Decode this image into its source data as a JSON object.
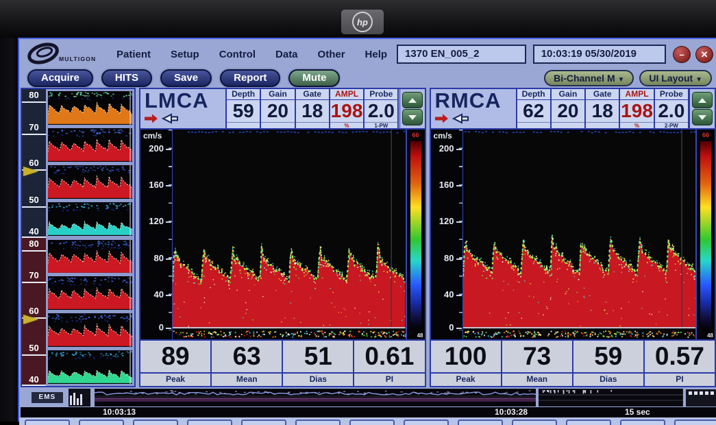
{
  "monitor": {
    "brand_logo": "hp"
  },
  "menu_bar": {
    "logo_text": "MULTIGON",
    "items": [
      "Patient",
      "Setup",
      "Control",
      "Data",
      "Other",
      "Help"
    ],
    "patient_id": "1370 EN_005_2",
    "datetime": "10:03:19 05/30/2019",
    "minimize_glyph": "–",
    "close_glyph": "✕"
  },
  "toolbar": {
    "buttons": [
      "Acquire",
      "HITS",
      "Save",
      "Report",
      "Mute"
    ],
    "mode_dropdown": "Bi-Channel M",
    "layout_dropdown": "UI Layout",
    "caret": "▼"
  },
  "sidebar": {
    "sections": [
      {
        "depth_labels": [
          "80",
          "70",
          "60",
          "50",
          "40"
        ],
        "arrow_depth": "60",
        "thumbs": [
          {
            "top_color": "#6fe0a8",
            "wave_color": "#e07818",
            "amp": "high"
          },
          {
            "top_color": "#3f6cf0",
            "wave_color": "#cc1822",
            "amp": "high"
          },
          {
            "top_color": "#3f6cf0",
            "wave_color": "#cc1822",
            "amp": "high"
          },
          {
            "top_color": "#38b8ee",
            "wave_color": "#28d0c8",
            "amp": "low"
          }
        ]
      },
      {
        "depth_labels": [
          "80",
          "70",
          "60",
          "50",
          "40"
        ],
        "arrow_depth": "60",
        "thumbs": [
          {
            "top_color": "#3f6cf0",
            "wave_color": "#cc1822",
            "amp": "high"
          },
          {
            "top_color": "#3f6cf0",
            "wave_color": "#cc1822",
            "amp": "high"
          },
          {
            "top_color": "#3f6cf0",
            "wave_color": "#cc1822",
            "amp": "high"
          },
          {
            "top_color": "#38b8ee",
            "wave_color": "#30d890",
            "amp": "low"
          }
        ]
      }
    ]
  },
  "panels": [
    {
      "title": "LMCA",
      "params": [
        {
          "header": "Depth",
          "value": "59",
          "sub": ""
        },
        {
          "header": "Gain",
          "value": "20",
          "sub": ""
        },
        {
          "header": "Gate",
          "value": "18",
          "sub": ""
        },
        {
          "header": "AMPL",
          "value": "198",
          "sub": "%"
        },
        {
          "header": "Probe",
          "value": "2.0",
          "sub": "1-PW"
        }
      ],
      "axis_unit": "cm/s",
      "axis_ticks": [
        "200",
        "160",
        "120",
        "80",
        "40",
        "0"
      ],
      "colorbar_max": "66",
      "strip_label": "48",
      "stats": [
        {
          "value": "89",
          "label": "Peak"
        },
        {
          "value": "63",
          "label": "Mean"
        },
        {
          "value": "51",
          "label": "Dias"
        },
        {
          "value": "0.61",
          "label": "PI"
        }
      ]
    },
    {
      "title": "RMCA",
      "params": [
        {
          "header": "Depth",
          "value": "62",
          "sub": ""
        },
        {
          "header": "Gain",
          "value": "20",
          "sub": ""
        },
        {
          "header": "Gate",
          "value": "18",
          "sub": ""
        },
        {
          "header": "AMPL",
          "value": "198",
          "sub": "%"
        },
        {
          "header": "Probe",
          "value": "2.0",
          "sub": "2-PW"
        }
      ],
      "axis_unit": "cm/s",
      "axis_ticks": [
        "200",
        "160",
        "120",
        "80",
        "40",
        "0"
      ],
      "colorbar_max": "66",
      "strip_label": "48",
      "stats": [
        {
          "value": "100",
          "label": "Peak"
        },
        {
          "value": "73",
          "label": "Mean"
        },
        {
          "value": "59",
          "label": "Dias"
        },
        {
          "value": "0.57",
          "label": "PI"
        }
      ]
    }
  ],
  "timeline": {
    "left_label": "EMS",
    "time_start": "10:03:13",
    "time_mid": "10:03:28",
    "duration_label": "15 sec"
  },
  "chart_data": [
    {
      "id": "lmca",
      "type": "area",
      "title": "LMCA Doppler velocity spectrum",
      "ylabel": "cm/s",
      "ylim": [
        0,
        220
      ],
      "yticks": [
        200,
        160,
        120,
        80,
        40,
        0
      ],
      "cycles": 8,
      "peak_cm_s": 89,
      "mean_cm_s": 63,
      "diastolic_cm_s": 51,
      "pi": 0.61,
      "fill_color": "#c81822",
      "intensity_scale_max": 66,
      "strip_value": 48
    },
    {
      "id": "rmca",
      "type": "area",
      "title": "RMCA Doppler velocity spectrum",
      "ylabel": "cm/s",
      "ylim": [
        0,
        220
      ],
      "yticks": [
        200,
        160,
        120,
        80,
        40,
        0
      ],
      "cycles": 8,
      "peak_cm_s": 100,
      "mean_cm_s": 73,
      "diastolic_cm_s": 59,
      "pi": 0.57,
      "fill_color": "#c81822",
      "intensity_scale_max": 66,
      "strip_value": 48
    }
  ]
}
